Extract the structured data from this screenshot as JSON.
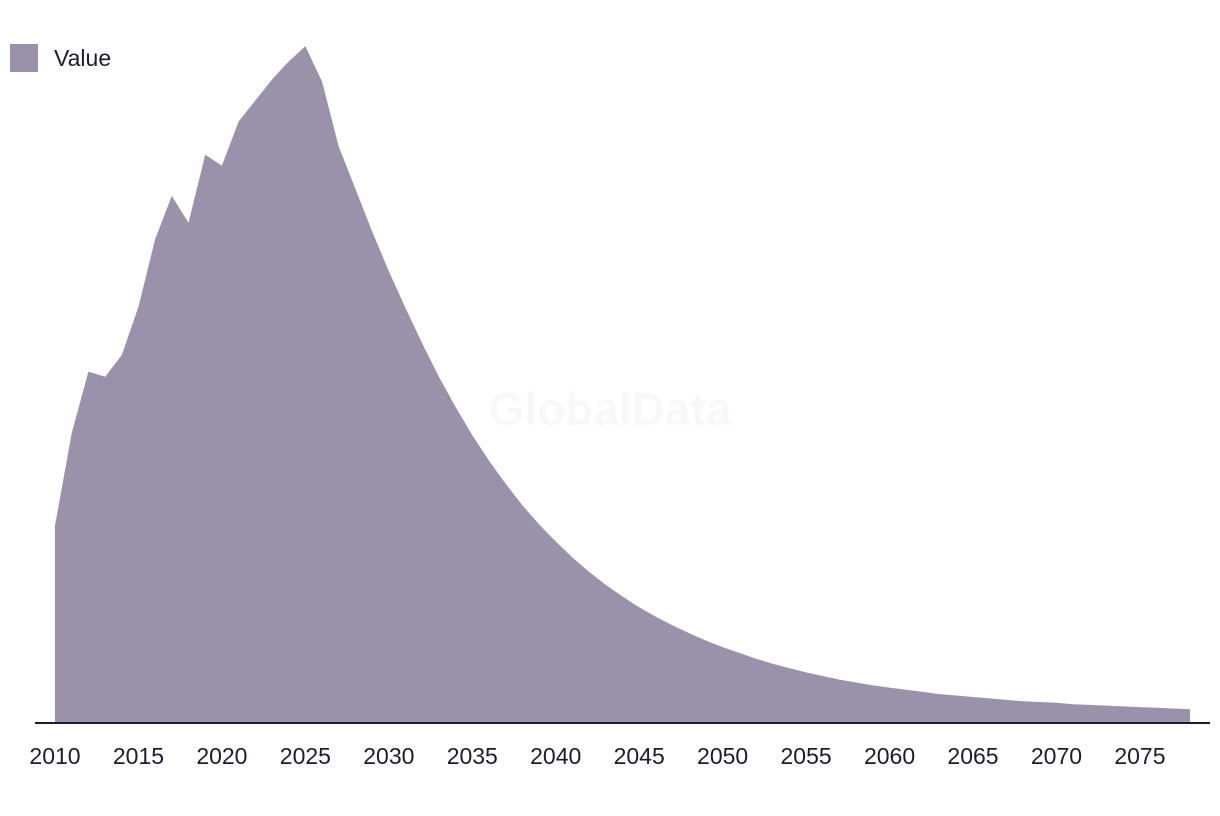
{
  "legend": {
    "label": "Value"
  },
  "watermark": "GlobalData",
  "colors": {
    "area": "#9a92ab",
    "axis": "#1f1b2e"
  },
  "chart_data": {
    "type": "area",
    "title": "",
    "xlabel": "",
    "ylabel": "",
    "legend_position": "top-left",
    "grid": false,
    "xlim": [
      2010,
      2078
    ],
    "ylim": [
      0,
      100
    ],
    "x_ticks": [
      2010,
      2015,
      2020,
      2025,
      2030,
      2035,
      2040,
      2045,
      2050,
      2055,
      2060,
      2065,
      2070,
      2075
    ],
    "x": [
      2010,
      2011,
      2012,
      2013,
      2014,
      2015,
      2016,
      2017,
      2018,
      2019,
      2020,
      2021,
      2022,
      2023,
      2024,
      2025,
      2026,
      2027,
      2028,
      2029,
      2030,
      2031,
      2032,
      2033,
      2034,
      2035,
      2036,
      2037,
      2038,
      2039,
      2040,
      2041,
      2042,
      2043,
      2044,
      2045,
      2046,
      2047,
      2048,
      2049,
      2050,
      2051,
      2052,
      2053,
      2054,
      2055,
      2056,
      2057,
      2058,
      2059,
      2060,
      2061,
      2062,
      2063,
      2064,
      2065,
      2066,
      2067,
      2068,
      2069,
      2070,
      2071,
      2072,
      2073,
      2074,
      2075,
      2076,
      2077,
      2078
    ],
    "series": [
      {
        "name": "Value",
        "values": [
          27.3,
          40.1,
          48.6,
          47.9,
          50.9,
          57.6,
          66.9,
          72.9,
          69.2,
          78.6,
          77.1,
          83.2,
          86.1,
          89.0,
          91.5,
          93.6,
          88.7,
          79.7,
          73.9,
          68.0,
          62.5,
          57.4,
          52.5,
          47.9,
          43.7,
          39.8,
          36.3,
          33.1,
          30.1,
          27.5,
          25.1,
          22.9,
          20.9,
          19.1,
          17.5,
          16.0,
          14.7,
          13.5,
          12.4,
          11.4,
          10.5,
          9.7,
          8.9,
          8.2,
          7.6,
          7.0,
          6.5,
          6.0,
          5.6,
          5.2,
          4.9,
          4.6,
          4.3,
          4.0,
          3.8,
          3.6,
          3.4,
          3.2,
          3.0,
          2.9,
          2.8,
          2.6,
          2.5,
          2.4,
          2.3,
          2.2,
          2.1,
          2.0,
          1.9
        ]
      }
    ]
  }
}
